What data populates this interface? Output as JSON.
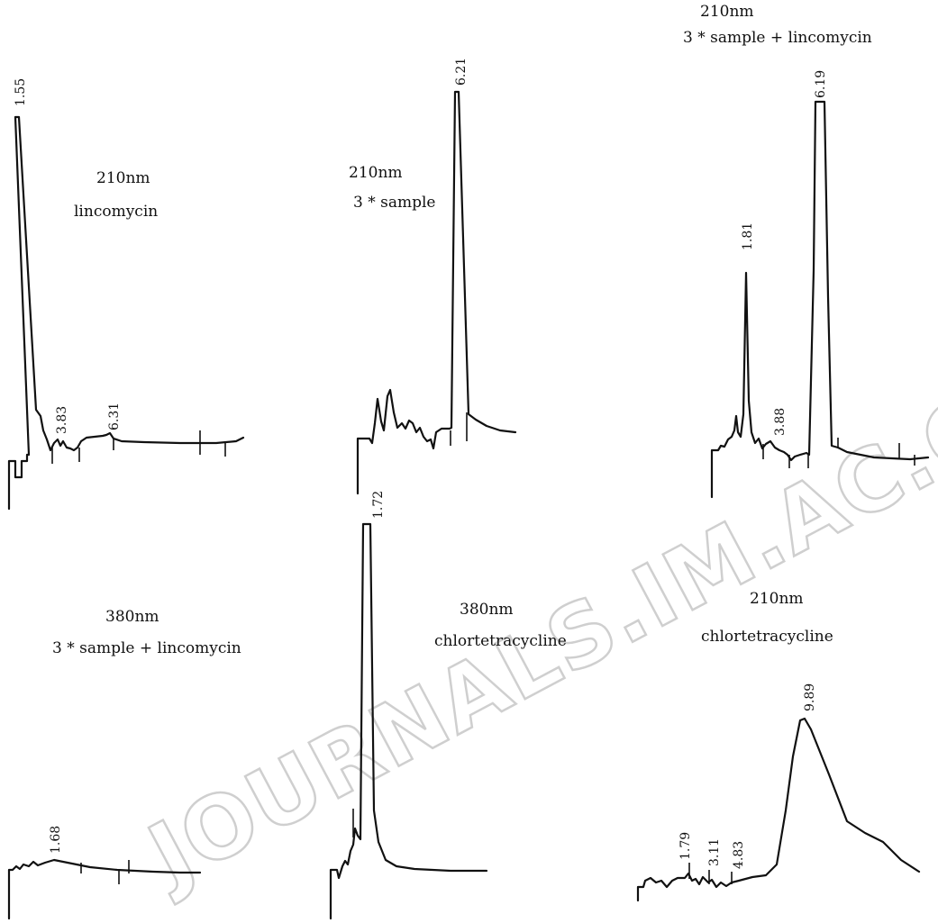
{
  "chart_data": [
    {
      "type": "line",
      "title": "210nm",
      "subtitle": "lincomycin",
      "peaks": [
        {
          "rt": 1.55,
          "label": "1.55"
        },
        {
          "rt": 3.83,
          "label": "3.83"
        },
        {
          "rt": 6.31,
          "label": "6.31"
        }
      ]
    },
    {
      "type": "line",
      "title": "210nm",
      "subtitle": "3 * sample",
      "peaks": [
        {
          "rt": 6.21,
          "label": "6.21"
        }
      ]
    },
    {
      "type": "line",
      "title": "210nm",
      "subtitle": "3 * sample + lincomycin",
      "peaks": [
        {
          "rt": 1.81,
          "label": "1.81"
        },
        {
          "rt": 3.88,
          "label": "3.88"
        },
        {
          "rt": 6.19,
          "label": "6.19"
        }
      ]
    },
    {
      "type": "line",
      "title": "380nm",
      "subtitle": "3 * sample + lincomycin",
      "peaks": [
        {
          "rt": 1.68,
          "label": "1.68"
        }
      ]
    },
    {
      "type": "line",
      "title": "380nm",
      "subtitle": "chlortetracycline",
      "peaks": [
        {
          "rt": 1.72,
          "label": "1.72"
        }
      ]
    },
    {
      "type": "line",
      "title": "210nm",
      "subtitle": "chlortetracycline",
      "peaks": [
        {
          "rt": 1.79,
          "label": "1.79"
        },
        {
          "rt": 3.11,
          "label": "3.11"
        },
        {
          "rt": 4.83,
          "label": "4.83"
        },
        {
          "rt": 9.89,
          "label": "9.89"
        }
      ]
    }
  ],
  "watermark": "JOURNALS.IM.AC.CN"
}
